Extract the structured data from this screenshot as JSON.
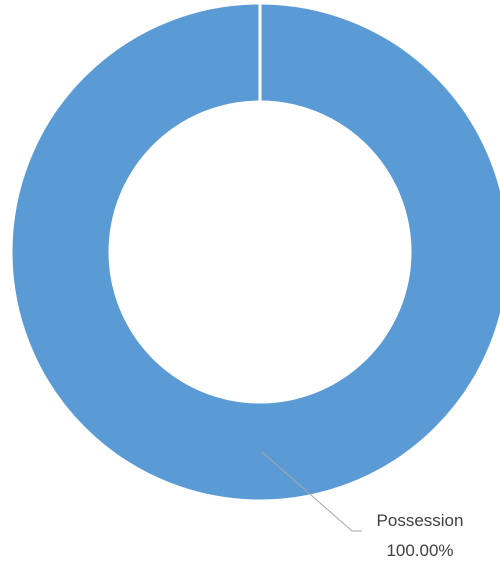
{
  "chart_data": {
    "type": "pie",
    "variant": "donut",
    "title": "",
    "slices": [
      {
        "label": "Possession",
        "value": 100.0,
        "display_value": "100.00%",
        "color": "#5B9BD5"
      }
    ],
    "legend": "none",
    "data_label_position": "outside-bottom-right"
  },
  "colors": {
    "slice": "#5B9BD5",
    "separator": "#ffffff",
    "leader_line": "#A6A6A6",
    "label_text": "#404040",
    "background": "#ffffff"
  }
}
